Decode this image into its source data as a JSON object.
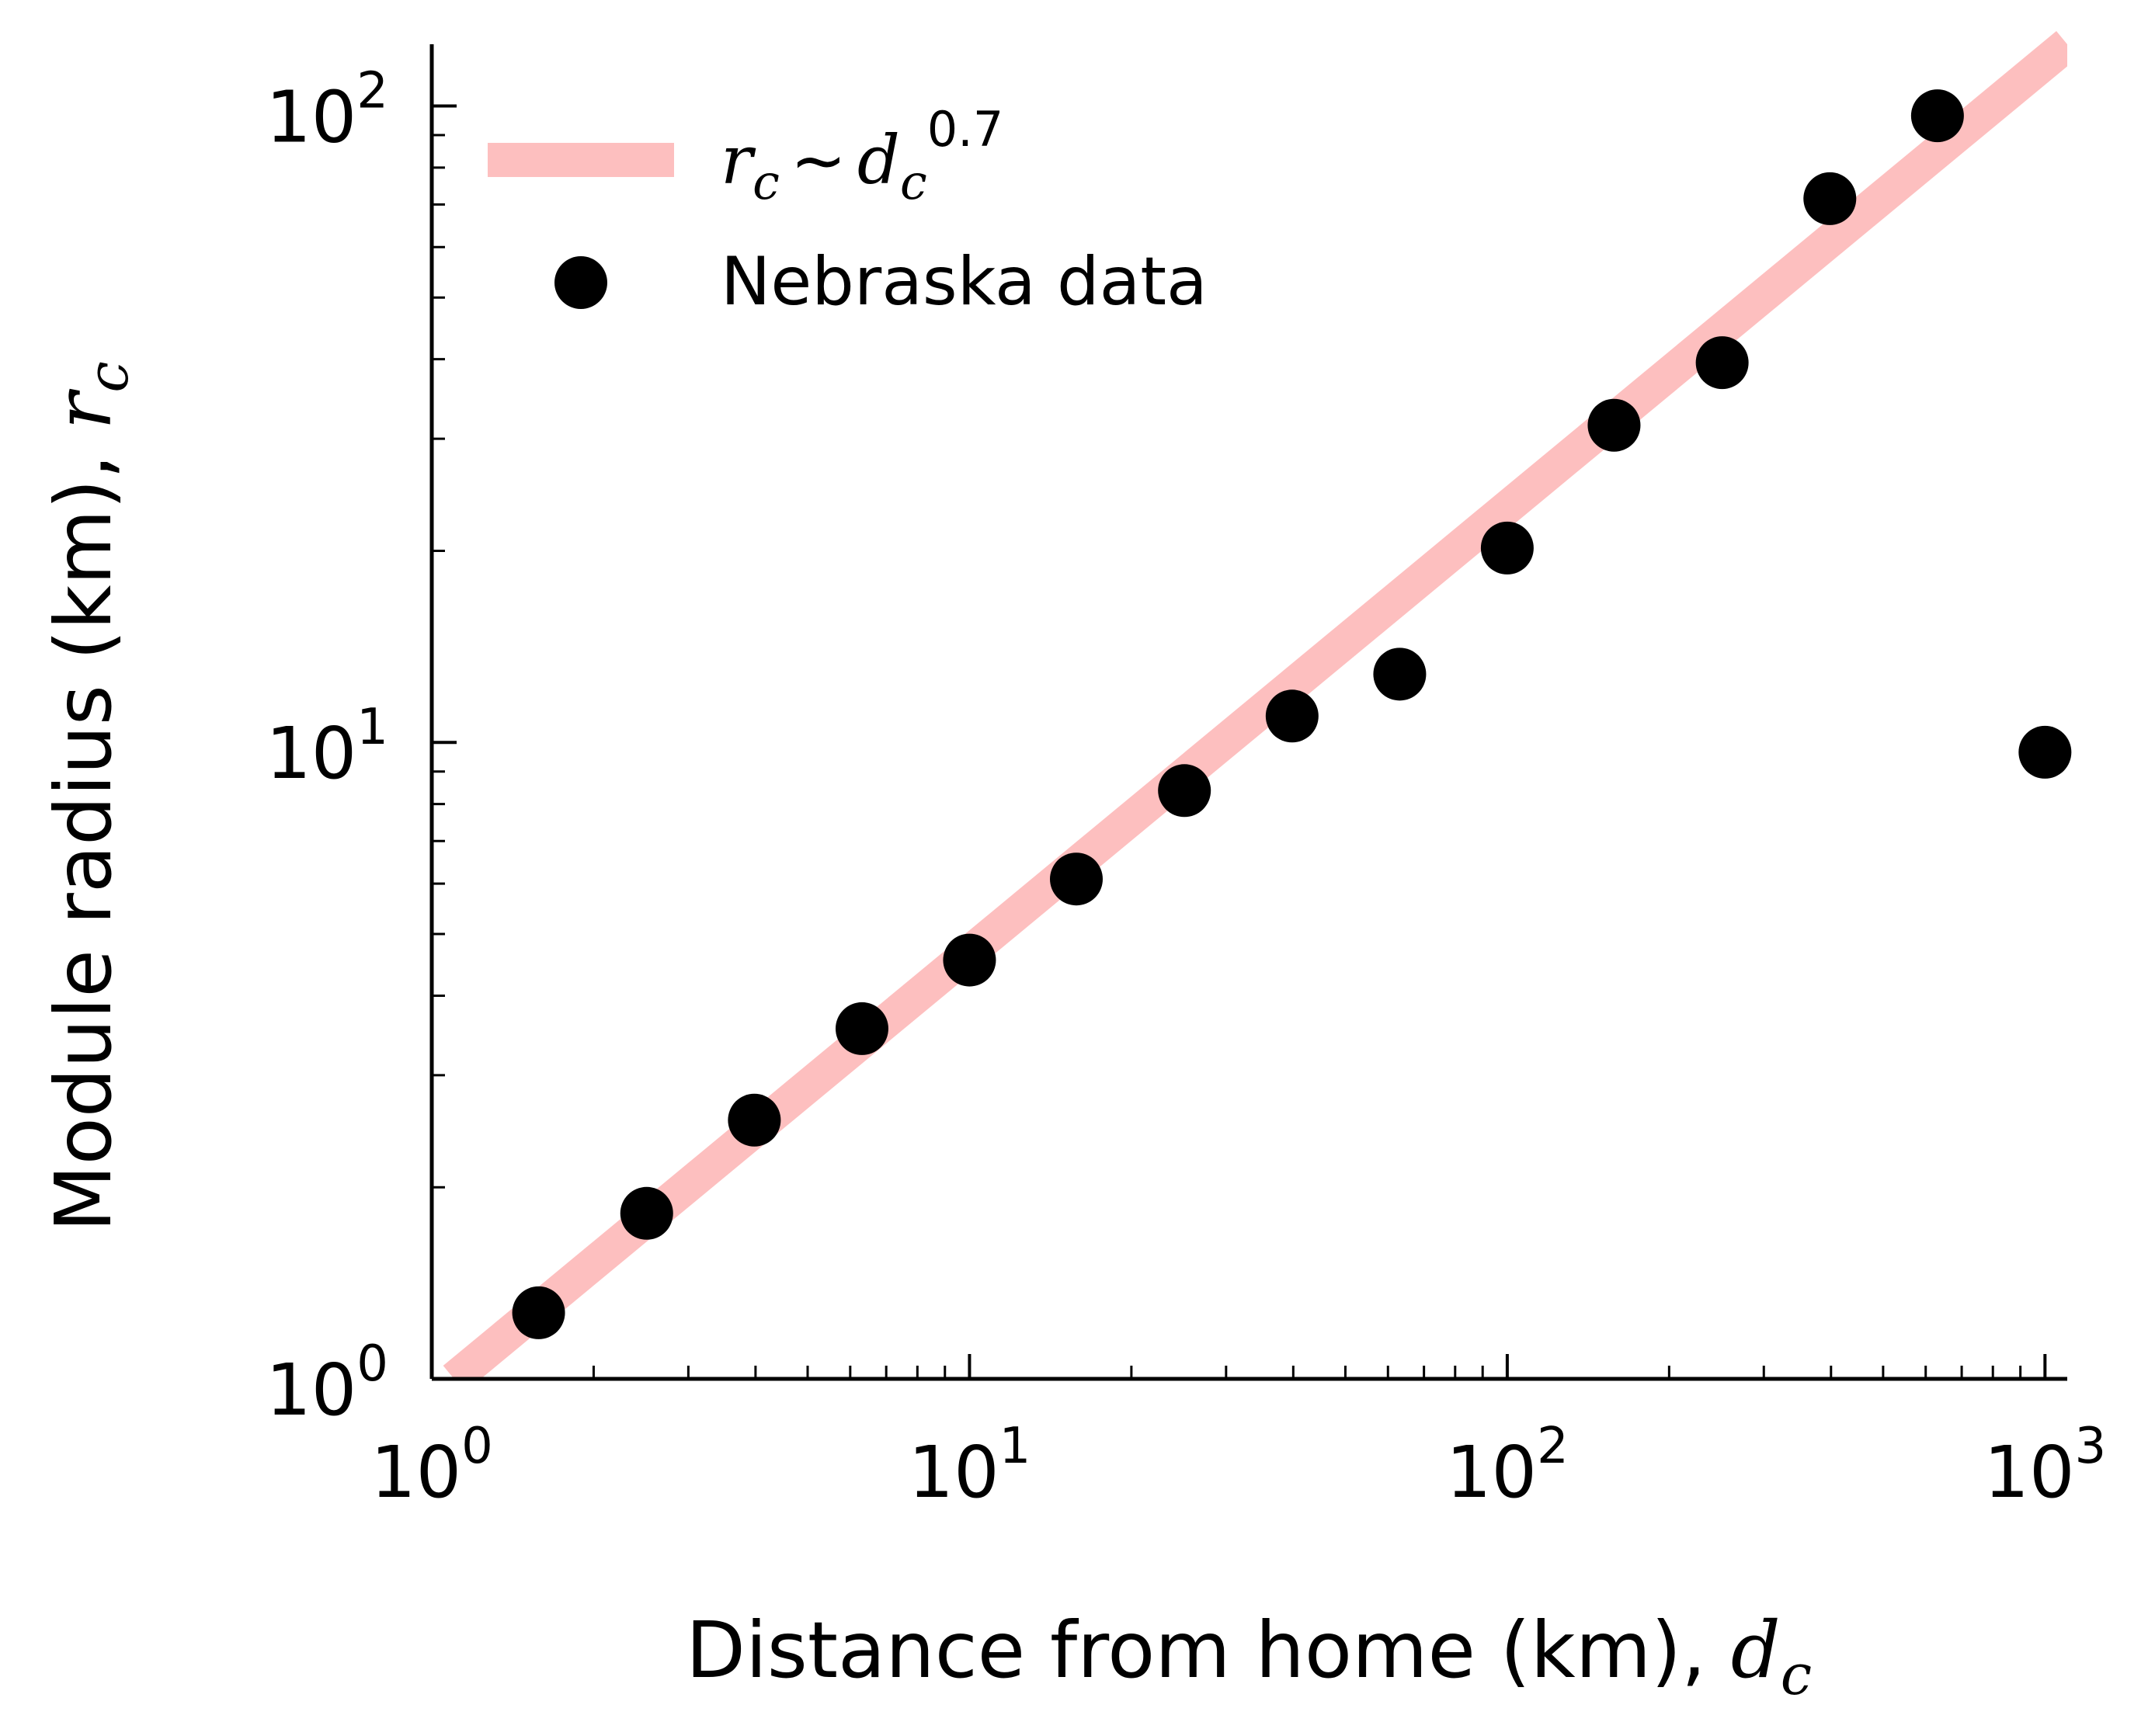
{
  "chart_data": {
    "type": "scatter",
    "xscale": "log",
    "yscale": "log",
    "xlim": [
      1,
      1100
    ],
    "ylim": [
      1,
      125
    ],
    "xticks": [
      {
        "base": "10",
        "exp": "0",
        "value": 1
      },
      {
        "base": "10",
        "exp": "1",
        "value": 10
      },
      {
        "base": "10",
        "exp": "2",
        "value": 100
      },
      {
        "base": "10",
        "exp": "3",
        "value": 1000
      }
    ],
    "yticks": [
      {
        "base": "10",
        "exp": "0",
        "value": 1
      },
      {
        "base": "10",
        "exp": "1",
        "value": 10
      },
      {
        "base": "10",
        "exp": "2",
        "value": 100
      }
    ],
    "xlabel": {
      "text": "Distance from home (km), ",
      "var": "d",
      "sub": "c"
    },
    "ylabel": {
      "text": "Module radius (km), ",
      "var": "r",
      "sub": "c"
    },
    "grid": false,
    "legend_position": "top-left",
    "series": [
      {
        "name": "Nebraska data",
        "kind": "scatter",
        "color": "#000000",
        "x": [
          1.58,
          2.51,
          3.98,
          6.31,
          10.0,
          15.8,
          25.1,
          39.8,
          63.1,
          100,
          158,
          251,
          398,
          631,
          1000
        ],
        "y": [
          1.27,
          1.82,
          2.55,
          3.55,
          4.55,
          6.1,
          8.4,
          11.0,
          12.8,
          20.2,
          31.5,
          39.5,
          71.5,
          96.5,
          9.65
        ]
      },
      {
        "kind": "fit-line",
        "color": "#fdbfbf",
        "legend": {
          "var1": "r",
          "sub1": "c",
          "op": "~",
          "var2": "d",
          "sub2": "c",
          "exp": "0.7"
        },
        "x": [
          1.1,
          1100
        ],
        "y": [
          1.0,
          125
        ]
      }
    ]
  }
}
